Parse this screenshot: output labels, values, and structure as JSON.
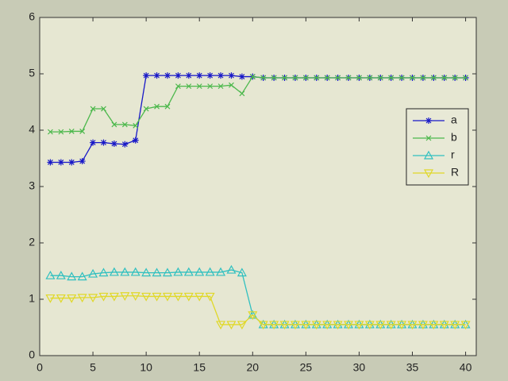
{
  "chart_data": {
    "type": "line",
    "x": [
      1,
      2,
      3,
      4,
      5,
      6,
      7,
      8,
      9,
      10,
      11,
      12,
      13,
      14,
      15,
      16,
      17,
      18,
      19,
      20,
      21,
      22,
      23,
      24,
      25,
      26,
      27,
      28,
      29,
      30,
      31,
      32,
      33,
      34,
      35,
      36,
      37,
      38,
      39,
      40
    ],
    "series": [
      {
        "name": "a",
        "color": "#1818c8",
        "marker": "star",
        "values": [
          3.43,
          3.43,
          3.43,
          3.45,
          3.78,
          3.78,
          3.76,
          3.75,
          3.82,
          4.97,
          4.97,
          4.97,
          4.97,
          4.97,
          4.97,
          4.97,
          4.97,
          4.97,
          4.95,
          4.95,
          4.93,
          4.93,
          4.93,
          4.93,
          4.93,
          4.93,
          4.93,
          4.93,
          4.93,
          4.93,
          4.93,
          4.93,
          4.93,
          4.93,
          4.93,
          4.93,
          4.93,
          4.93,
          4.93,
          4.93
        ]
      },
      {
        "name": "b",
        "color": "#4cb84c",
        "marker": "x",
        "values": [
          3.97,
          3.97,
          3.98,
          3.98,
          4.38,
          4.38,
          4.1,
          4.1,
          4.08,
          4.38,
          4.42,
          4.42,
          4.78,
          4.78,
          4.78,
          4.78,
          4.78,
          4.8,
          4.65,
          4.95,
          4.93,
          4.93,
          4.93,
          4.93,
          4.93,
          4.93,
          4.93,
          4.93,
          4.93,
          4.93,
          4.93,
          4.93,
          4.93,
          4.93,
          4.93,
          4.93,
          4.93,
          4.93,
          4.93,
          4.93
        ]
      },
      {
        "name": "r",
        "color": "#30c0c0",
        "marker": "triangle-up",
        "values": [
          1.42,
          1.42,
          1.4,
          1.4,
          1.45,
          1.47,
          1.48,
          1.48,
          1.48,
          1.47,
          1.47,
          1.47,
          1.48,
          1.48,
          1.48,
          1.48,
          1.48,
          1.52,
          1.47,
          0.72,
          0.55,
          0.55,
          0.55,
          0.55,
          0.55,
          0.55,
          0.55,
          0.55,
          0.55,
          0.55,
          0.55,
          0.55,
          0.55,
          0.55,
          0.55,
          0.55,
          0.55,
          0.55,
          0.55,
          0.55
        ]
      },
      {
        "name": "R",
        "color": "#e0d828",
        "marker": "triangle-down",
        "values": [
          1.02,
          1.02,
          1.02,
          1.03,
          1.03,
          1.05,
          1.05,
          1.06,
          1.06,
          1.05,
          1.05,
          1.05,
          1.05,
          1.05,
          1.05,
          1.05,
          0.55,
          0.55,
          0.55,
          0.72,
          0.55,
          0.55,
          0.55,
          0.55,
          0.55,
          0.55,
          0.55,
          0.55,
          0.55,
          0.55,
          0.55,
          0.55,
          0.55,
          0.55,
          0.55,
          0.55,
          0.55,
          0.55,
          0.55,
          0.55
        ]
      }
    ],
    "xlim": [
      0,
      41
    ],
    "xticks": [
      0,
      5,
      10,
      15,
      20,
      25,
      30,
      35,
      40
    ],
    "ylim": [
      0,
      6
    ],
    "yticks": [
      0,
      1,
      2,
      3,
      4,
      5,
      6
    ],
    "grid": false,
    "legend": "east"
  }
}
